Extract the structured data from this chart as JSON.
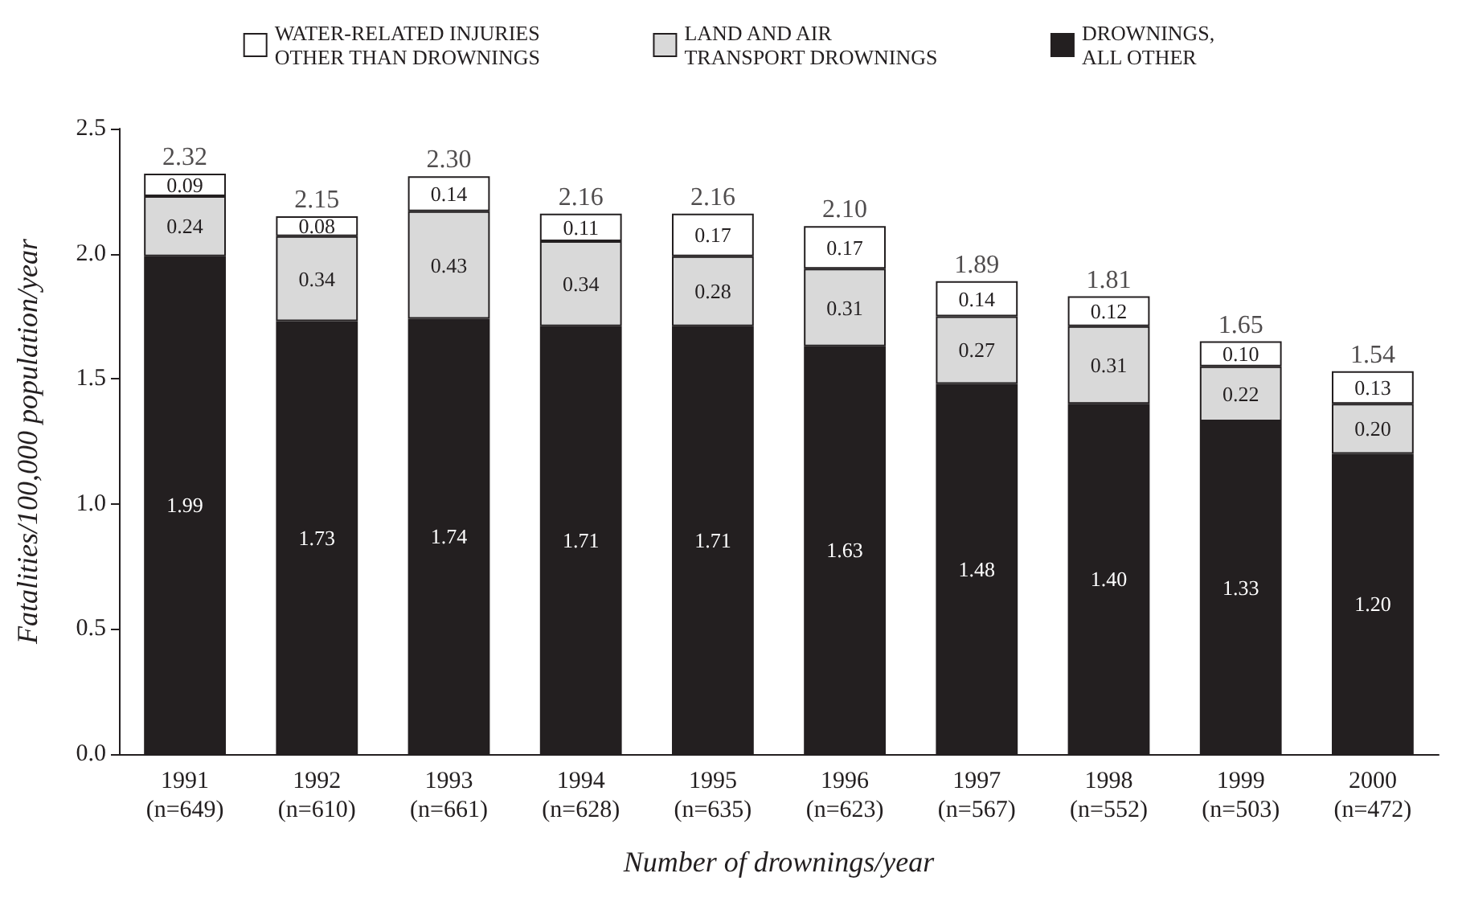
{
  "chart_data": {
    "type": "bar",
    "stacked": true,
    "xlabel": "Number of drownings/year",
    "ylabel": "Fatalities/100,000 population/year",
    "categories": [
      "1991\n(n=649)",
      "1992\n(n=610)",
      "1993\n(n=661)",
      "1994\n(n=628)",
      "1995\n(n=635)",
      "1996\n(n=623)",
      "1997\n(n=567)",
      "1998\n(n=552)",
      "1999\n(n=503)",
      "2000\n(n=472)"
    ],
    "series": [
      {
        "name": "DROWNINGS,\nALL OTHER",
        "color": "#231f20",
        "values": [
          1.99,
          1.73,
          1.74,
          1.71,
          1.71,
          1.63,
          1.48,
          1.4,
          1.33,
          1.2
        ],
        "value_labels": [
          "1.99",
          "1.73",
          "1.74",
          "1.71",
          "1.71",
          "1.63",
          "1.48",
          "1.40",
          "1.33",
          "1.20"
        ]
      },
      {
        "name": "LAND AND AIR\nTRANSPORT DROWNINGS",
        "color": "#d9d9d9",
        "values": [
          0.24,
          0.34,
          0.43,
          0.34,
          0.28,
          0.31,
          0.27,
          0.31,
          0.22,
          0.2
        ],
        "value_labels": [
          "0.24",
          "0.34",
          "0.43",
          "0.34",
          "0.28",
          "0.31",
          "0.27",
          "0.31",
          "0.22",
          "0.20"
        ]
      },
      {
        "name": "WATER-RELATED INJURIES\nOTHER THAN DROWNINGS",
        "color": "#ffffff",
        "values": [
          0.09,
          0.08,
          0.14,
          0.11,
          0.17,
          0.17,
          0.14,
          0.12,
          0.1,
          0.13
        ],
        "value_labels": [
          "0.09",
          "0.08",
          "0.14",
          "0.11",
          "0.17",
          "0.17",
          "0.14",
          "0.12",
          "0.10",
          "0.13"
        ]
      }
    ],
    "totals": [
      "2.32",
      "2.15",
      "2.30",
      "2.16",
      "2.16",
      "2.10",
      "1.89",
      "1.81",
      "1.65",
      "1.54"
    ],
    "ylim": [
      0,
      2.5
    ],
    "yticks": [
      {
        "value": 0,
        "label": "0.0"
      },
      0.5,
      {
        "value": 1,
        "label": "1.0"
      },
      1.5,
      {
        "value": 2,
        "label": "2.0"
      },
      2.5
    ],
    "legend": "top",
    "grid": false
  }
}
